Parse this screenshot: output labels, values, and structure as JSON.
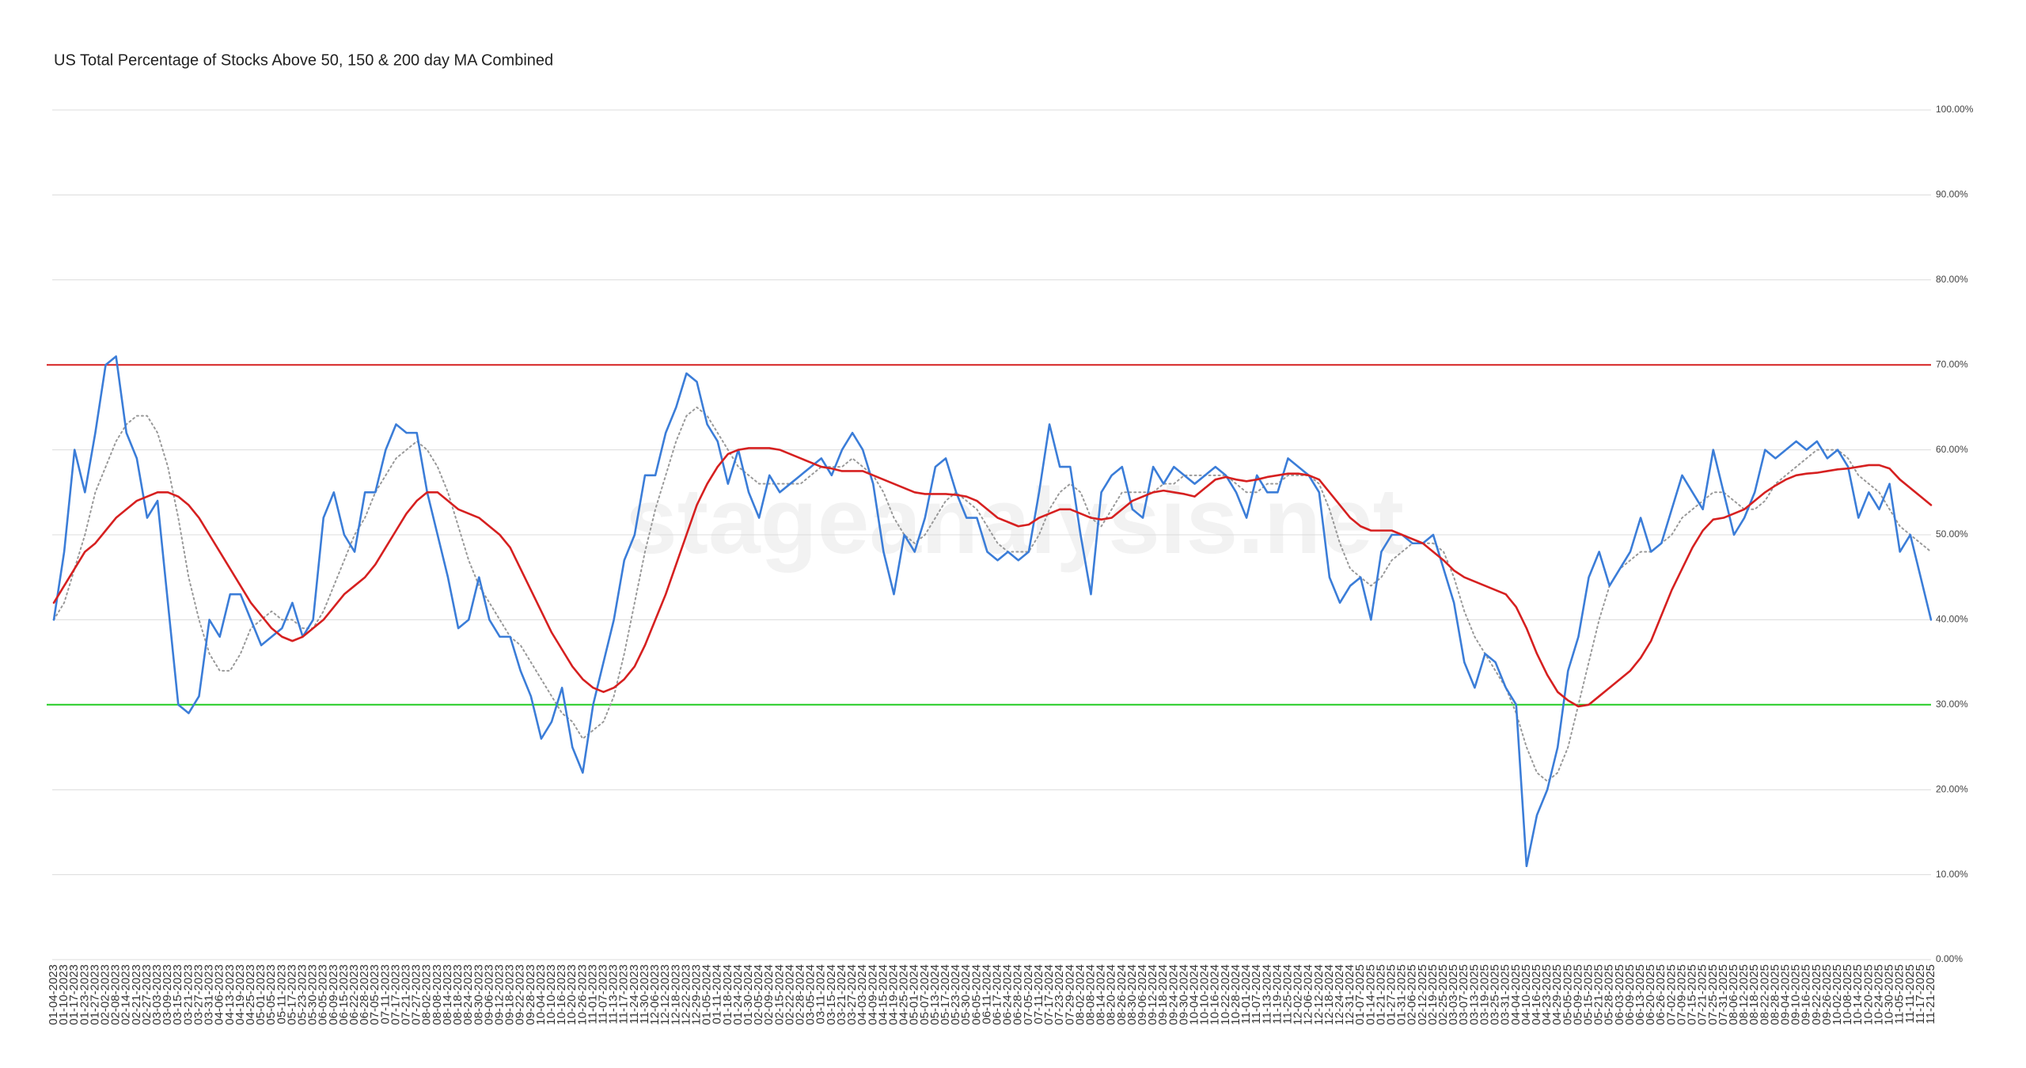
{
  "chart_data": {
    "type": "line",
    "title": "US Total Percentage of Stocks Above 50, 150 & 200 day MA Combined",
    "watermark": "stageanalysis.net",
    "categories": [
      "01-04-2023",
      "01-10-2023",
      "01-17-2023",
      "01-23-2023",
      "01-27-2023",
      "02-02-2023",
      "02-08-2023",
      "02-14-2023",
      "02-21-2023",
      "02-27-2023",
      "03-03-2023",
      "03-09-2023",
      "03-15-2023",
      "03-21-2023",
      "03-27-2023",
      "03-31-2023",
      "04-06-2023",
      "04-13-2023",
      "04-19-2023",
      "04-25-2023",
      "05-01-2023",
      "05-05-2023",
      "05-11-2023",
      "05-17-2023",
      "05-23-2023",
      "05-30-2023",
      "06-05-2023",
      "06-09-2023",
      "06-15-2023",
      "06-22-2023",
      "06-28-2023",
      "07-05-2023",
      "07-11-2023",
      "07-17-2023",
      "07-21-2023",
      "07-27-2023",
      "08-02-2023",
      "08-08-2023",
      "08-14-2023",
      "08-18-2023",
      "08-24-2023",
      "08-30-2023",
      "09-06-2023",
      "09-12-2023",
      "09-18-2023",
      "09-22-2023",
      "09-28-2023",
      "10-04-2023",
      "10-10-2023",
      "10-16-2023",
      "10-20-2023",
      "10-26-2023",
      "11-01-2023",
      "11-07-2023",
      "11-13-2023",
      "11-17-2023",
      "11-24-2023",
      "11-30-2023",
      "12-06-2023",
      "12-12-2023",
      "12-18-2023",
      "12-22-2023",
      "12-29-2023",
      "01-05-2024",
      "01-11-2024",
      "01-18-2024",
      "01-24-2024",
      "01-30-2024",
      "02-05-2024",
      "02-09-2024",
      "02-15-2024",
      "02-22-2024",
      "02-28-2024",
      "03-05-2024",
      "03-11-2024",
      "03-15-2024",
      "03-21-2024",
      "03-27-2024",
      "04-03-2024",
      "04-09-2024",
      "04-15-2024",
      "04-19-2024",
      "04-25-2024",
      "05-01-2024",
      "05-07-2024",
      "05-13-2024",
      "05-17-2024",
      "05-23-2024",
      "05-30-2024",
      "06-05-2024",
      "06-11-2024",
      "06-17-2024",
      "06-24-2024",
      "06-28-2024",
      "07-05-2024",
      "07-11-2024",
      "07-17-2024",
      "07-23-2024",
      "07-29-2024",
      "08-02-2024",
      "08-08-2024",
      "08-14-2024",
      "08-20-2024",
      "08-26-2024",
      "08-30-2024",
      "09-06-2024",
      "09-12-2024",
      "09-18-2024",
      "09-24-2024",
      "09-30-2024",
      "10-04-2024",
      "10-10-2024",
      "10-16-2024",
      "10-22-2024",
      "10-28-2024",
      "11-01-2024",
      "11-07-2024",
      "11-13-2024",
      "11-19-2024",
      "11-25-2024",
      "12-02-2024",
      "12-06-2024",
      "12-12-2024",
      "12-18-2024",
      "12-24-2024",
      "12-31-2024",
      "01-07-2025",
      "01-14-2025",
      "01-21-2025",
      "01-27-2025",
      "01-31-2025",
      "02-06-2025",
      "02-12-2025",
      "02-19-2025",
      "02-25-2025",
      "03-03-2025",
      "03-07-2025",
      "03-13-2025",
      "03-19-2025",
      "03-25-2025",
      "03-31-2025",
      "04-04-2025",
      "04-10-2025",
      "04-16-2025",
      "04-23-2025",
      "04-29-2025",
      "05-05-2025",
      "05-09-2025",
      "05-15-2025",
      "05-21-2025",
      "05-28-2025",
      "06-03-2025",
      "06-09-2025",
      "06-13-2025",
      "06-20-2025",
      "06-26-2025",
      "07-02-2025",
      "07-09-2025",
      "07-15-2025",
      "07-21-2025",
      "07-25-2025",
      "07-31-2025",
      "08-06-2025",
      "08-12-2025",
      "08-18-2025",
      "08-22-2025",
      "08-28-2025",
      "09-04-2025",
      "09-10-2025",
      "09-16-2025",
      "09-22-2025",
      "09-26-2025",
      "10-02-2025",
      "10-08-2025",
      "10-14-2025",
      "10-20-2025",
      "10-24-2025",
      "10-30-2025",
      "11-05-2025",
      "11-11-2025",
      "11-17-2025",
      "11-21-2025"
    ],
    "series": [
      {
        "color": "#999999",
        "dashed": true,
        "values": [
          40,
          42,
          46,
          50,
          55,
          58,
          61,
          63,
          64,
          64,
          62,
          58,
          52,
          45,
          40,
          36,
          34,
          34,
          36,
          39,
          40,
          41,
          40,
          40,
          39,
          39,
          41,
          44,
          47,
          50,
          52,
          55,
          57,
          59,
          60,
          61,
          60,
          58,
          55,
          51,
          47,
          44,
          42,
          40,
          38,
          37,
          35,
          33,
          31,
          29,
          28,
          26,
          27,
          28,
          31,
          36,
          42,
          48,
          53,
          57,
          61,
          64,
          65,
          64,
          62,
          60,
          58,
          57,
          56,
          56,
          56,
          56,
          56,
          57,
          58,
          58,
          58,
          59,
          58,
          57,
          55,
          52,
          50,
          49,
          50,
          52,
          54,
          55,
          54,
          53,
          51,
          49,
          48,
          48,
          48,
          50,
          53,
          55,
          56,
          55,
          52,
          51,
          53,
          55,
          55,
          55,
          55,
          56,
          56,
          57,
          57,
          57,
          57,
          57,
          56,
          55,
          55,
          56,
          56,
          57,
          57,
          57,
          56,
          53,
          49,
          46,
          45,
          44,
          45,
          47,
          48,
          49,
          49,
          49,
          48,
          45,
          41,
          38,
          36,
          34,
          32,
          29,
          25,
          22,
          21,
          22,
          25,
          30,
          35,
          40,
          44,
          46,
          47,
          48,
          48,
          49,
          50,
          52,
          53,
          54,
          55,
          55,
          54,
          53,
          53,
          54,
          56,
          57,
          58,
          59,
          60,
          60,
          60,
          59,
          57,
          56,
          55,
          53,
          51,
          50,
          49,
          48
        ]
      },
      {
        "color": "#3b7dd8",
        "dashed": false,
        "values": [
          40,
          48,
          60,
          55,
          62,
          70,
          71,
          62,
          59,
          52,
          54,
          42,
          30,
          29,
          31,
          40,
          38,
          43,
          43,
          40,
          37,
          38,
          39,
          42,
          38,
          40,
          52,
          55,
          50,
          48,
          55,
          55,
          60,
          63,
          62,
          62,
          55,
          50,
          45,
          39,
          40,
          45,
          40,
          38,
          38,
          34,
          31,
          26,
          28,
          32,
          25,
          22,
          30,
          35,
          40,
          47,
          50,
          57,
          57,
          62,
          65,
          69,
          68,
          63,
          61,
          56,
          60,
          55,
          52,
          57,
          55,
          56,
          57,
          58,
          59,
          57,
          60,
          62,
          60,
          56,
          48,
          43,
          50,
          48,
          52,
          58,
          59,
          55,
          52,
          52,
          48,
          47,
          48,
          47,
          48,
          55,
          63,
          58,
          58,
          50,
          43,
          55,
          57,
          58,
          53,
          52,
          58,
          56,
          58,
          57,
          56,
          57,
          58,
          57,
          55,
          52,
          57,
          55,
          55,
          59,
          58,
          57,
          55,
          45,
          42,
          44,
          45,
          40,
          48,
          50,
          50,
          49,
          49,
          50,
          46,
          42,
          35,
          32,
          36,
          35,
          32,
          30,
          11,
          17,
          20,
          25,
          34,
          38,
          45,
          48,
          44,
          46,
          48,
          52,
          48,
          49,
          53,
          57,
          55,
          53,
          60,
          55,
          50,
          52,
          55,
          60,
          59,
          60,
          61,
          60,
          61,
          59,
          60,
          58,
          52,
          55,
          53,
          56,
          48,
          50,
          45,
          40
        ]
      },
      {
        "color": "#d62020",
        "dashed": false,
        "values": [
          42,
          44,
          46,
          48,
          49,
          50.5,
          52,
          53,
          54,
          54.5,
          55,
          55,
          54.5,
          53.5,
          52,
          50,
          48,
          46,
          44,
          42,
          40.5,
          39,
          38,
          37.5,
          38,
          39,
          40,
          41.5,
          43,
          44,
          45,
          46.5,
          48.5,
          50.5,
          52.5,
          54,
          55,
          55,
          54,
          53,
          52.5,
          52,
          51,
          50,
          48.5,
          46,
          43.5,
          41,
          38.5,
          36.5,
          34.5,
          33,
          32,
          31.5,
          32,
          33,
          34.5,
          37,
          40,
          43,
          46.5,
          50,
          53.5,
          56,
          58,
          59.5,
          60,
          60.2,
          60.2,
          60.2,
          60,
          59.5,
          59,
          58.5,
          58,
          57.8,
          57.5,
          57.5,
          57.5,
          57,
          56.5,
          56,
          55.5,
          55,
          54.8,
          54.8,
          54.8,
          54.7,
          54.5,
          54,
          53,
          52,
          51.5,
          51,
          51.2,
          52,
          52.5,
          53,
          53,
          52.5,
          52,
          51.8,
          52,
          53,
          54,
          54.5,
          55,
          55.2,
          55,
          54.8,
          54.5,
          55.5,
          56.5,
          56.8,
          56.5,
          56.3,
          56.5,
          56.8,
          57,
          57.2,
          57.2,
          57,
          56.5,
          55,
          53.5,
          52,
          51,
          50.5,
          50.5,
          50.5,
          50,
          49.5,
          49,
          48,
          47,
          45.8,
          45,
          44.5,
          44,
          43.5,
          43,
          41.5,
          39,
          36,
          33.5,
          31.5,
          30.5,
          29.8,
          30,
          31,
          32,
          33,
          34,
          35.5,
          37.5,
          40.5,
          43.5,
          46,
          48.5,
          50.5,
          51.8,
          52,
          52.5,
          53,
          54,
          55,
          55.8,
          56.5,
          57,
          57.2,
          57.3,
          57.5,
          57.7,
          57.8,
          58,
          58.2,
          58.2,
          57.8,
          56.5,
          55.5,
          54.5,
          53.5
        ]
      }
    ],
    "hlines": [
      {
        "value": 70,
        "color": "#d62020"
      },
      {
        "value": 30,
        "color": "#22cc22"
      }
    ],
    "ylim": [
      0,
      100
    ],
    "yticks": [
      {
        "value": 0,
        "label": "0.00%"
      },
      {
        "value": 10,
        "label": "10.00%"
      },
      {
        "value": 20,
        "label": "20.00%"
      },
      {
        "value": 30,
        "label": "30.00%"
      },
      {
        "value": 40,
        "label": "40.00%"
      },
      {
        "value": 50,
        "label": "50.00%"
      },
      {
        "value": 60,
        "label": "60.00%"
      },
      {
        "value": 70,
        "label": "70.00%"
      },
      {
        "value": 80,
        "label": "80.00%"
      },
      {
        "value": 90,
        "label": "90.00%"
      },
      {
        "value": 100,
        "label": "100.00%"
      }
    ],
    "grid": true
  }
}
